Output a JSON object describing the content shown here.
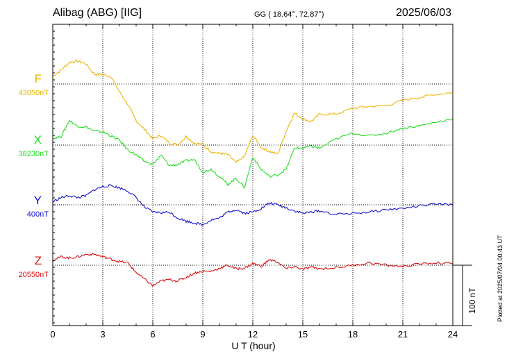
{
  "header": {
    "station": "Alibag (ABG)  [IIG]",
    "coords": "GG ( 18.64°,  72.87°)",
    "date": "2025/06/03"
  },
  "footnote": "Plotted at 2025/07/04 00:43 UT",
  "colors": {
    "F": "#f0b400",
    "X": "#22dd22",
    "Y": "#1010cc",
    "Z": "#dd1010"
  },
  "chart_data": {
    "type": "line",
    "xlabel": "U T (hour)",
    "xlim": [
      0,
      24
    ],
    "xticks": [
      "0",
      "3",
      "6",
      "9",
      "12",
      "15",
      "18",
      "21",
      "24"
    ],
    "scale_bar": "100 nT",
    "scale_nT_per_division": 100,
    "series": [
      {
        "name": "F",
        "baseline": "43050nT",
        "x": [
          0,
          0.5,
          1,
          1.5,
          2,
          2.5,
          3,
          3.5,
          4,
          4.5,
          5,
          5.5,
          6,
          6.5,
          7,
          7.5,
          8,
          8.5,
          9,
          9.5,
          10,
          10.5,
          11,
          11.5,
          12,
          12.5,
          13,
          13.5,
          14,
          14.5,
          15,
          15.5,
          16,
          17,
          18,
          19,
          20,
          21,
          22,
          23,
          24
        ],
        "y": [
          13,
          23,
          36,
          38,
          33,
          16,
          16,
          12,
          -13,
          -34,
          -61,
          -75,
          -91,
          -85,
          -98,
          -100,
          -87,
          -98,
          -100,
          -112,
          -115,
          -117,
          -130,
          -120,
          -85,
          -105,
          -112,
          -116,
          -78,
          -48,
          -58,
          -62,
          -50,
          -50,
          -40,
          -37,
          -36,
          -27,
          -22,
          -17,
          -14
        ]
      },
      {
        "name": "X",
        "baseline": "38230nT",
        "x": [
          0,
          0.5,
          1,
          1.5,
          2,
          2.5,
          3,
          3.5,
          4,
          4.5,
          5,
          5.5,
          6,
          6.5,
          7,
          7.5,
          8,
          8.5,
          9,
          9.5,
          10,
          10.5,
          11,
          11.5,
          12,
          12.5,
          13,
          13.5,
          14,
          14.5,
          15,
          15.5,
          16,
          17,
          18,
          19,
          20,
          21,
          22,
          23,
          24
        ],
        "y": [
          11,
          14,
          41,
          31,
          30,
          23,
          22,
          15,
          8,
          -8,
          -16,
          -27,
          -32,
          -17,
          -34,
          -32,
          -26,
          -24,
          -45,
          -40,
          -52,
          -65,
          -55,
          -70,
          -20,
          -40,
          -52,
          -49,
          -40,
          -5,
          -5,
          -2,
          -5,
          10,
          20,
          15,
          20,
          28,
          32,
          38,
          44
        ]
      },
      {
        "name": "Y",
        "baseline": "400nT",
        "x": [
          0,
          0.5,
          1,
          1.5,
          2,
          2.5,
          3,
          3.5,
          4,
          4.5,
          5,
          5.5,
          6,
          6.5,
          7,
          7.5,
          8,
          8.5,
          9,
          9.5,
          10,
          10.5,
          11,
          11.5,
          12,
          12.5,
          13,
          13.5,
          14,
          14.5,
          15,
          15.5,
          16,
          17,
          18,
          19,
          20,
          21,
          22,
          23,
          24
        ],
        "y": [
          5,
          12,
          15,
          12,
          15,
          25,
          30,
          32,
          28,
          23,
          12,
          -4,
          -12,
          -13,
          -12,
          -22,
          -27,
          -30,
          -33,
          -25,
          -22,
          -12,
          -8,
          -14,
          -12,
          -6,
          3,
          0,
          -5,
          -10,
          -14,
          -12,
          -10,
          -16,
          -14,
          -12,
          -8,
          -6,
          -2,
          1,
          0
        ]
      },
      {
        "name": "Z",
        "baseline": "20550nT",
        "x": [
          0,
          0.5,
          1,
          1.5,
          2,
          2.5,
          3,
          3.5,
          4,
          4.5,
          5,
          5.5,
          6,
          6.5,
          7,
          7.5,
          8,
          8.5,
          9,
          9.5,
          10,
          10.5,
          11,
          11.5,
          12,
          12.5,
          13,
          13.5,
          14,
          14.5,
          15,
          15.5,
          16,
          17,
          18,
          19,
          20,
          21,
          22,
          23,
          24
        ],
        "y": [
          8,
          14,
          12,
          14,
          18,
          18,
          14,
          10,
          6,
          4,
          -12,
          -23,
          -34,
          -26,
          -24,
          -26,
          -20,
          -13,
          -10,
          -10,
          -5,
          0,
          -6,
          -5,
          3,
          -2,
          9,
          5,
          -6,
          -2,
          -7,
          -3,
          -6,
          -4,
          0,
          4,
          0,
          -2,
          2,
          4,
          2
        ]
      }
    ]
  }
}
